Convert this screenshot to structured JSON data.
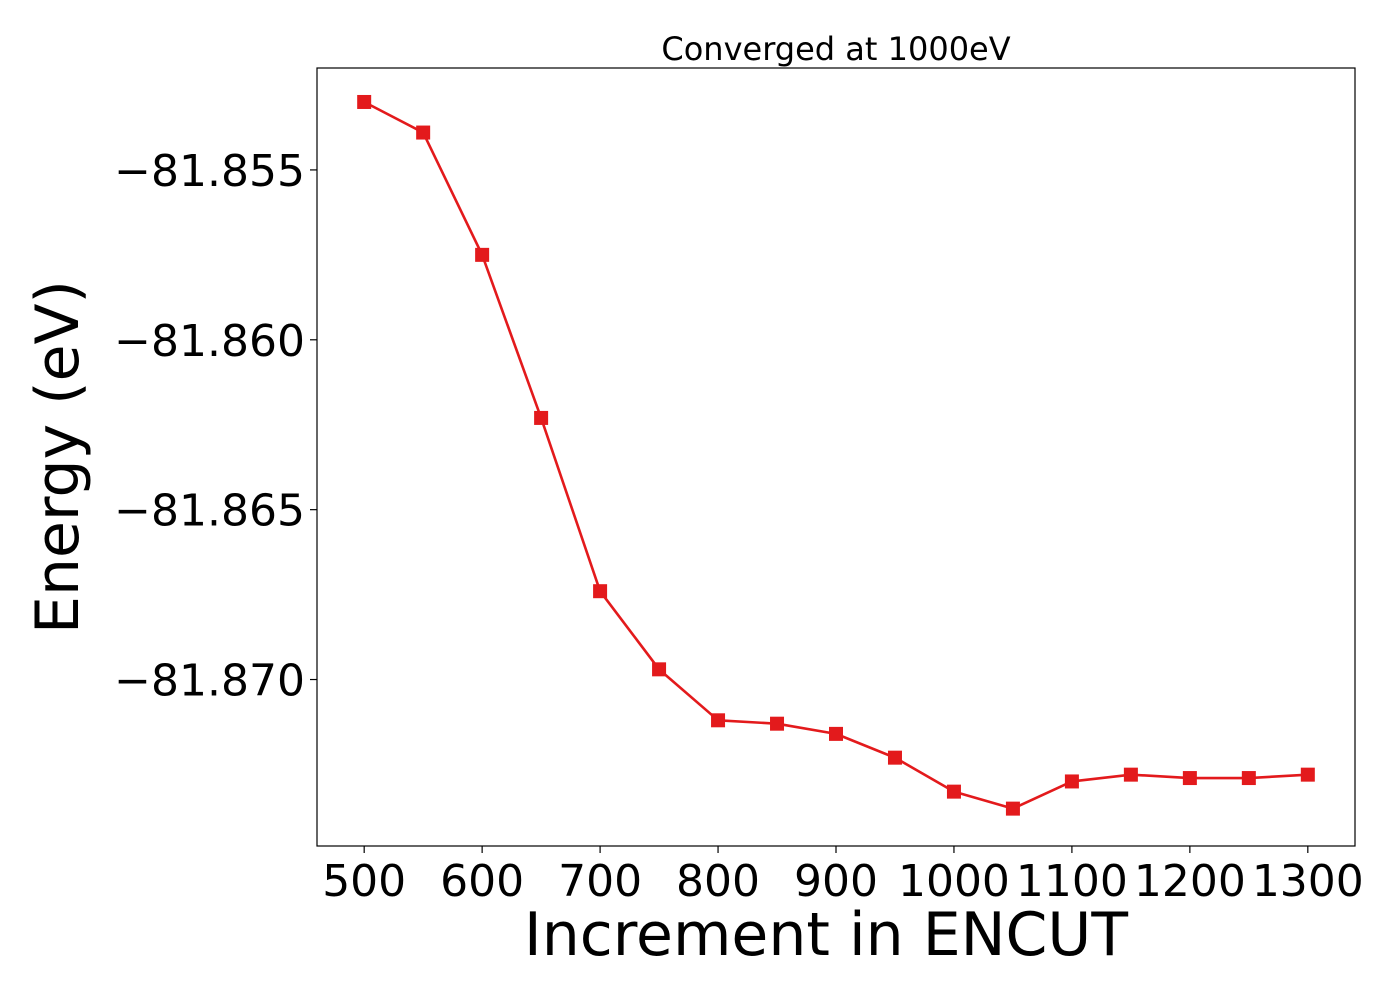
{
  "chart_data": {
    "type": "line",
    "title": "Converged at 1000eV",
    "xlabel": "Increment in ENCUT",
    "ylabel": "Energy (eV)",
    "xlim": [
      460,
      1340
    ],
    "ylim": [
      -81.8749,
      -81.852
    ],
    "x_ticks": [
      500,
      600,
      700,
      800,
      900,
      1000,
      1100,
      1200,
      1300
    ],
    "x_tick_labels": [
      "500",
      "600",
      "700",
      "800",
      "900",
      "1000",
      "1100",
      "1200",
      "1300"
    ],
    "y_ticks": [
      -81.855,
      -81.86,
      -81.865,
      -81.87
    ],
    "y_tick_labels": [
      "−81.855",
      "−81.860",
      "−81.865",
      "−81.870"
    ],
    "grid": false,
    "legend": "none",
    "series": [
      {
        "color": "#e31a1c",
        "marker": "square",
        "x": [
          500,
          550,
          600,
          650,
          700,
          750,
          800,
          850,
          900,
          950,
          1000,
          1050,
          1100,
          1150,
          1200,
          1250,
          1300
        ],
        "y": [
          -81.853,
          -81.8539,
          -81.8575,
          -81.8623,
          -81.8674,
          -81.8697,
          -81.8712,
          -81.8713,
          -81.8716,
          -81.8723,
          -81.8733,
          -81.8738,
          -81.873,
          -81.8728,
          -81.8729,
          -81.8729,
          -81.8728
        ]
      }
    ]
  }
}
